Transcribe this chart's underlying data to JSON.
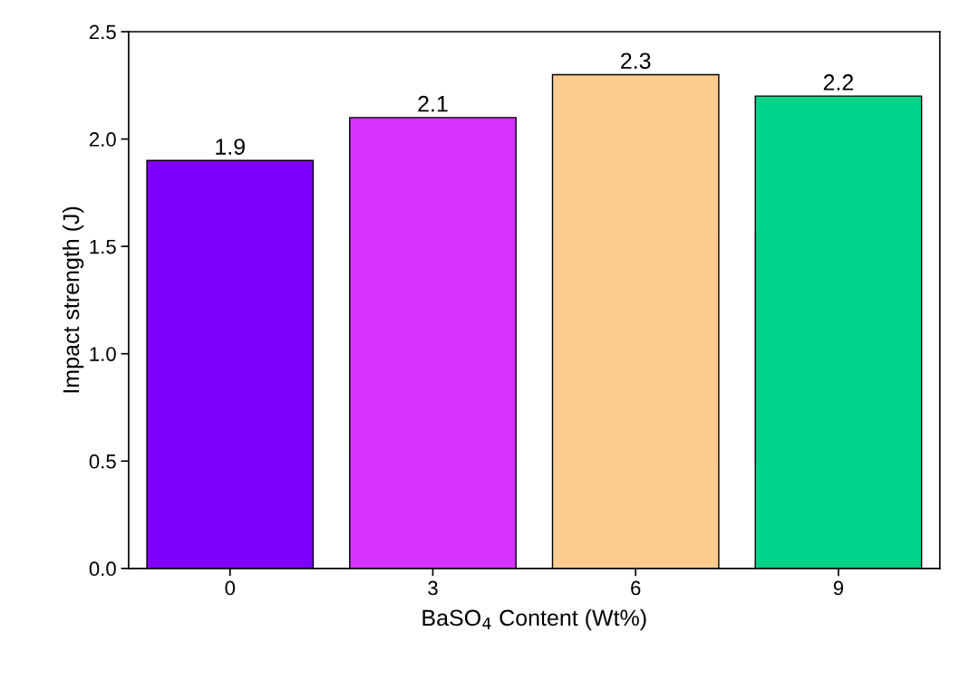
{
  "chart_data": {
    "type": "bar",
    "xlabel": "BaSO$_{4}$ Content (Wt%)",
    "ylabel": "Impact strength (J)",
    "categories": [
      "0",
      "3",
      "6",
      "9"
    ],
    "values": [
      1.9,
      2.1,
      2.3,
      2.2
    ],
    "colors": [
      "#7f00ff",
      "#d633ff",
      "#ffcc90",
      "#00d48a"
    ],
    "ylim": [
      0,
      2.5
    ],
    "yticks": [
      {
        "value": 0,
        "label": "0.0"
      },
      {
        "value": 0.5,
        "label": "0.5"
      },
      {
        "value": 1,
        "label": "1.0"
      },
      {
        "value": 1.5,
        "label": "1.5"
      },
      {
        "value": 2,
        "label": "2.0"
      },
      {
        "value": 2.5,
        "label": "2.5"
      }
    ],
    "data_labels": true,
    "grid": false,
    "legend": false
  }
}
